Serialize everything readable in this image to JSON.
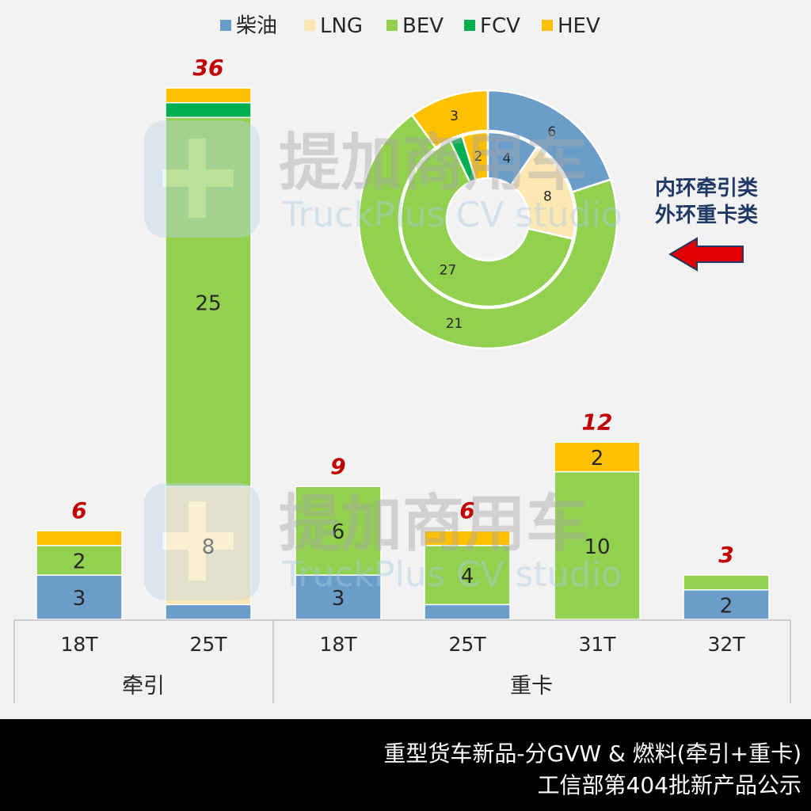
{
  "palette": {
    "diesel": "#6a9ec9",
    "lng": "#fde8b4",
    "bev": "#92d050",
    "fcv": "#00b050",
    "hev": "#ffc000",
    "total_label": "#c00000",
    "annotation": "#1f3864",
    "arrow": "#e00000"
  },
  "watermark": {
    "name": "提加商用车",
    "subtitle": "TruckPlus CV studio"
  },
  "chart_data": [
    {
      "type": "bar",
      "stacked": true,
      "groups": [
        {
          "label": "牵引",
          "categories": [
            "18T",
            "25T"
          ]
        },
        {
          "label": "重卡",
          "categories": [
            "18T",
            "25T",
            "31T",
            "32T"
          ]
        }
      ],
      "categories": [
        "18T",
        "25T",
        "18T",
        "25T",
        "31T",
        "32T"
      ],
      "series": [
        {
          "name": "柴油",
          "key": "diesel",
          "values": [
            3,
            1,
            3,
            1,
            0,
            2
          ]
        },
        {
          "name": "LNG",
          "key": "lng",
          "values": [
            0,
            8,
            0,
            0,
            0,
            0
          ]
        },
        {
          "name": "BEV",
          "key": "bev",
          "values": [
            2,
            25,
            6,
            4,
            10,
            1
          ]
        },
        {
          "name": "FCV",
          "key": "fcv",
          "values": [
            0,
            1,
            0,
            0,
            0,
            0
          ]
        },
        {
          "name": "HEV",
          "key": "hev",
          "values": [
            1,
            1,
            0,
            1,
            2,
            0
          ]
        }
      ],
      "totals": [
        "6",
        "36",
        "9",
        "6",
        "12",
        "3"
      ],
      "legend_position": "top",
      "ylim": [
        0,
        36
      ],
      "grid": false
    },
    {
      "type": "pie",
      "donut": true,
      "rings": [
        {
          "ring": "inner",
          "slices": [
            {
              "key": "diesel",
              "value": 4,
              "label": "4"
            },
            {
              "key": "lng",
              "value": 8,
              "label": "8"
            },
            {
              "key": "bev",
              "value": 27,
              "label": "27"
            },
            {
              "key": "fcv",
              "value": 1,
              "label": ""
            },
            {
              "key": "hev",
              "value": 2,
              "label": "2"
            }
          ]
        },
        {
          "ring": "outer",
          "slices": [
            {
              "key": "diesel",
              "value": 6,
              "label": "6"
            },
            {
              "key": "bev",
              "value": 21,
              "label": "21"
            },
            {
              "key": "hev",
              "value": 3,
              "label": "3"
            }
          ]
        }
      ],
      "annotation": [
        "内环牵引类",
        "外环重卡类"
      ]
    }
  ],
  "footer": {
    "line1": "重型货车新品-分GVW & 燃料(牵引+重卡)",
    "line2": "工信部第404批新产品公示"
  }
}
